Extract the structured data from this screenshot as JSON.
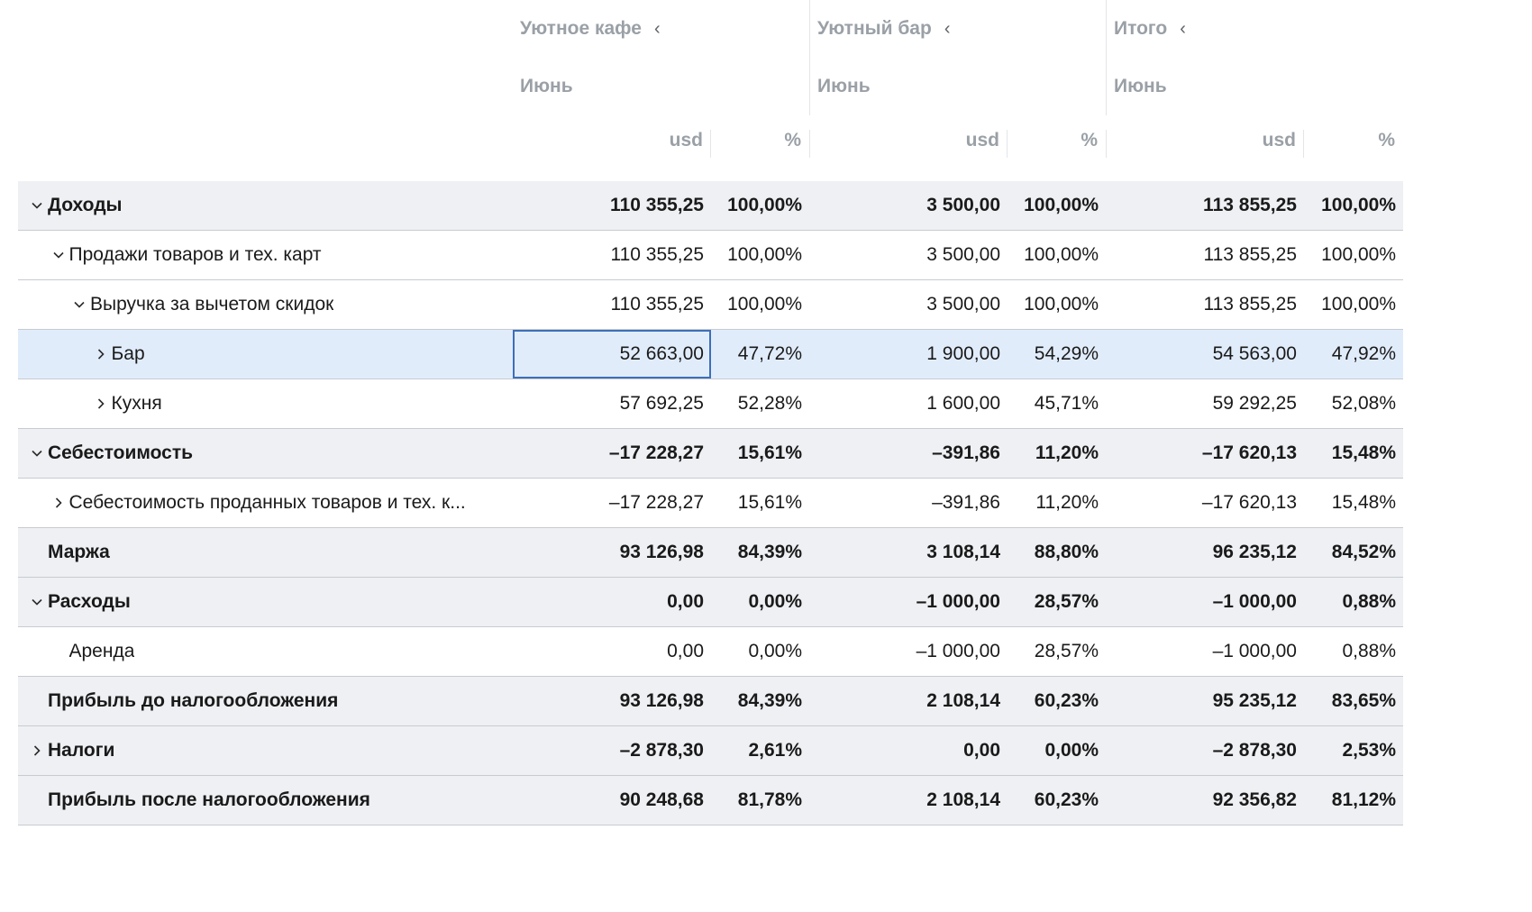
{
  "columns": {
    "groups": [
      {
        "name": "Уютное кафе",
        "period": "Июнь"
      },
      {
        "name": "Уютный бар",
        "period": "Июнь"
      },
      {
        "name": "Итого",
        "period": "Июнь"
      }
    ],
    "unit_labels": {
      "amount": "usd",
      "percent": "%"
    }
  },
  "rows": [
    {
      "label": "Доходы",
      "level": 0,
      "toggle": "expanded",
      "style": "group",
      "values": [
        "110 355,25",
        "100,00%",
        "3 500,00",
        "100,00%",
        "113 855,25",
        "100,00%"
      ]
    },
    {
      "label": "Продажи товаров и тех. карт",
      "level": 1,
      "toggle": "expanded",
      "style": "normal",
      "values": [
        "110 355,25",
        "100,00%",
        "3 500,00",
        "100,00%",
        "113 855,25",
        "100,00%"
      ]
    },
    {
      "label": "Выручка за вычетом скидок",
      "level": 2,
      "toggle": "expanded",
      "style": "normal",
      "values": [
        "110 355,25",
        "100,00%",
        "3 500,00",
        "100,00%",
        "113 855,25",
        "100,00%"
      ]
    },
    {
      "label": "Бар",
      "level": 3,
      "toggle": "collapsed",
      "style": "selected",
      "values": [
        "52 663,00",
        "47,72%",
        "1 900,00",
        "54,29%",
        "54 563,00",
        "47,92%"
      ]
    },
    {
      "label": "Кухня",
      "level": 3,
      "toggle": "collapsed",
      "style": "normal",
      "values": [
        "57 692,25",
        "52,28%",
        "1 600,00",
        "45,71%",
        "59 292,25",
        "52,08%"
      ]
    },
    {
      "label": "Себестоимость",
      "level": 0,
      "toggle": "expanded",
      "style": "group",
      "values": [
        "–17 228,27",
        "15,61%",
        "–391,86",
        "11,20%",
        "–17 620,13",
        "15,48%"
      ]
    },
    {
      "label": "Себестоимость проданных товаров и тех. к...",
      "level": 1,
      "toggle": "collapsed",
      "style": "normal",
      "values": [
        "–17 228,27",
        "15,61%",
        "–391,86",
        "11,20%",
        "–17 620,13",
        "15,48%"
      ]
    },
    {
      "label": "Маржа",
      "level": 0,
      "toggle": "none",
      "style": "group",
      "values": [
        "93 126,98",
        "84,39%",
        "3 108,14",
        "88,80%",
        "96 235,12",
        "84,52%"
      ]
    },
    {
      "label": "Расходы",
      "level": 0,
      "toggle": "expanded",
      "style": "group",
      "values": [
        "0,00",
        "0,00%",
        "–1 000,00",
        "28,57%",
        "–1 000,00",
        "0,88%"
      ]
    },
    {
      "label": "Аренда",
      "level": 1,
      "toggle": "none",
      "style": "normal",
      "values": [
        "0,00",
        "0,00%",
        "–1 000,00",
        "28,57%",
        "–1 000,00",
        "0,88%"
      ]
    },
    {
      "label": "Прибыль до налогообложения",
      "level": 0,
      "toggle": "none",
      "style": "group",
      "values": [
        "93 126,98",
        "84,39%",
        "2 108,14",
        "60,23%",
        "95 235,12",
        "83,65%"
      ]
    },
    {
      "label": "Налоги",
      "level": 0,
      "toggle": "collapsed",
      "style": "group",
      "values": [
        "–2 878,30",
        "2,61%",
        "0,00",
        "0,00%",
        "–2 878,30",
        "2,53%"
      ]
    },
    {
      "label": "Прибыль после налогообложения",
      "level": 0,
      "toggle": "none",
      "style": "group",
      "values": [
        "90 248,68",
        "81,78%",
        "2 108,14",
        "60,23%",
        "92 356,82",
        "81,12%"
      ]
    }
  ],
  "icons": {
    "expanded": "chevron-down-icon",
    "collapsed": "chevron-right-icon",
    "group_collapse": "chevron-left-icon"
  },
  "colors": {
    "selection_fill": "#e1ecfb",
    "focus_border": "#3d6fb6",
    "group_row_fill": "#eef0f3",
    "header_text": "#9aa0a6"
  }
}
